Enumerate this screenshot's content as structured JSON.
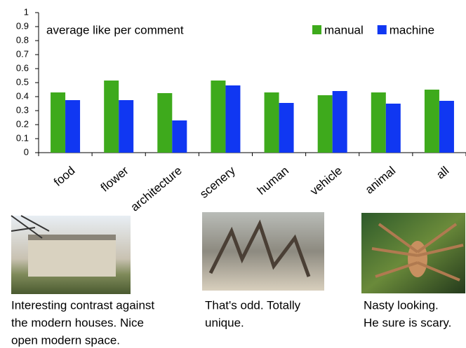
{
  "chart_data": {
    "type": "bar",
    "annotation": "average like per comment",
    "categories": [
      "food",
      "flower",
      "architecture",
      "scenery",
      "human",
      "vehicle",
      "animal",
      "all"
    ],
    "series": [
      {
        "name": "manual",
        "color": "#3eaa1c",
        "values": [
          0.43,
          0.515,
          0.425,
          0.515,
          0.43,
          0.41,
          0.43,
          0.45
        ]
      },
      {
        "name": "machine",
        "color": "#1037f2",
        "values": [
          0.375,
          0.375,
          0.23,
          0.48,
          0.355,
          0.44,
          0.35,
          0.37
        ]
      }
    ],
    "ylim": [
      0,
      1
    ],
    "yticks": [
      0,
      0.1,
      0.2,
      0.3,
      0.4,
      0.5,
      0.6,
      0.7,
      0.8,
      0.9,
      1
    ],
    "grid": false,
    "legend": "upper-right"
  },
  "captions": [
    [
      "Interesting contrast against",
      "the modern houses. Nice",
      "open modern space."
    ],
    [
      "That's odd. Totally",
      "unique."
    ],
    [
      "Nasty looking.",
      "He sure is scary."
    ]
  ]
}
